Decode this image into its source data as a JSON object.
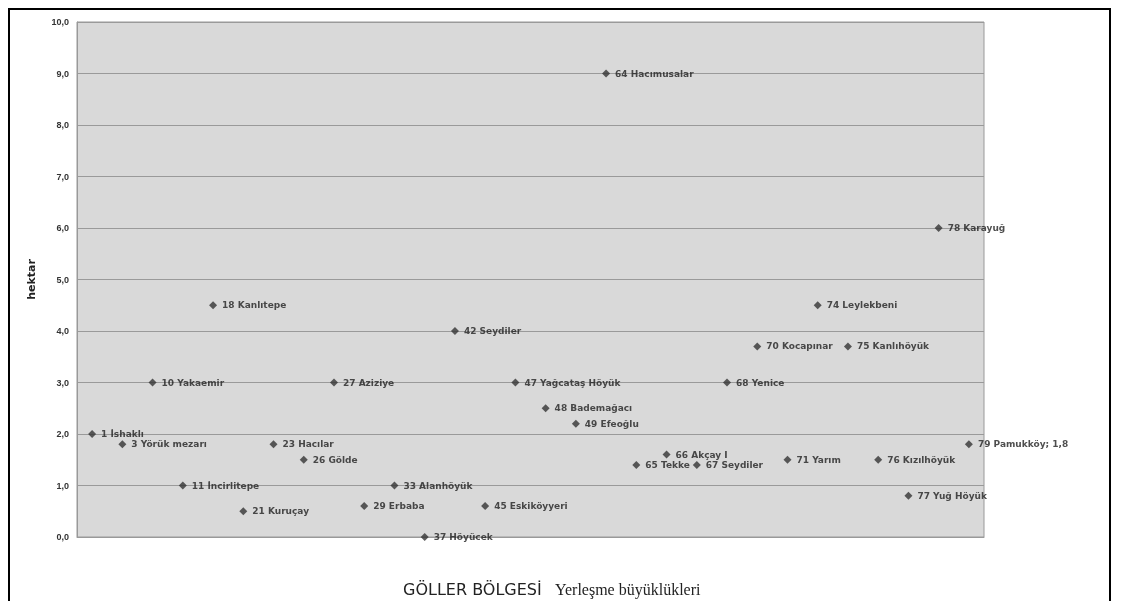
{
  "chart_data": {
    "type": "scatter",
    "title": "GÖLLER BÖLGESİ",
    "subtitle": "Yerleşme büyüklükleri",
    "ylabel": "hektar",
    "categories": [
      null,
      null,
      null,
      null,
      null,
      null,
      null,
      null,
      null,
      null,
      null,
      null,
      null,
      null,
      null,
      null,
      null,
      null,
      null,
      null,
      null,
      null,
      null,
      null,
      null,
      null,
      null,
      null,
      null,
      null
    ],
    "values": [
      2.0,
      1.8,
      3.0,
      1.0,
      4.5,
      0.5,
      1.8,
      1.5,
      3.0,
      0.6,
      1.0,
      0.0,
      4.0,
      0.6,
      3.0,
      2.5,
      2.2,
      9.0,
      1.4,
      1.6,
      1.4,
      3.0,
      3.7,
      1.5,
      4.5,
      3.7,
      1.5,
      0.8,
      6.0,
      1.8
    ],
    "annotations": [
      "1 İshaklı",
      "3 Yörük mezarı",
      "10 Yakaemir",
      "11 İncirlitepe",
      "18 Kanlıtepe",
      "21 Kuruçay",
      "23 Hacılar",
      "26 Gölde",
      "27 Aziziye",
      "29 Erbaba",
      "33 Alanhöyük",
      "37 Höyücek",
      "42 Seydiler",
      "45 Eskiköyyeri",
      "47 Yağcataş Höyük",
      "48 Bademağacı",
      "49 Efeoğlu",
      "64 Hacımusalar",
      "65 Tekke",
      "66 Akçay I",
      "67 Seydiler",
      "68 Yenice",
      "70 Kocapınar",
      "71 Yarım",
      "74 Leylekbeni",
      "75 Kanlıhöyük",
      "76 Kızılhöyük",
      "77 Yuğ Höyük",
      "78 Karayuğ",
      "79 Pamukköy; 1,8"
    ],
    "color": "#333333",
    "marker": "diamond",
    "grid": "y",
    "tick_labels": "y",
    "ylim": [
      0,
      10
    ],
    "yticks": [
      {
        "value": 0,
        "label": "0,0"
      },
      {
        "value": 1,
        "label": "1,0"
      },
      {
        "value": 2,
        "label": "2,0"
      },
      {
        "value": 3,
        "label": "3,0"
      },
      {
        "value": 4,
        "label": "4,0"
      },
      {
        "value": 5,
        "label": "5,0"
      },
      {
        "value": 6,
        "label": "6,0"
      },
      {
        "value": 7,
        "label": "7,0"
      },
      {
        "value": 8,
        "label": "8,0"
      },
      {
        "value": 9,
        "label": "9,0"
      },
      {
        "value": 10,
        "label": "10,0"
      }
    ]
  }
}
